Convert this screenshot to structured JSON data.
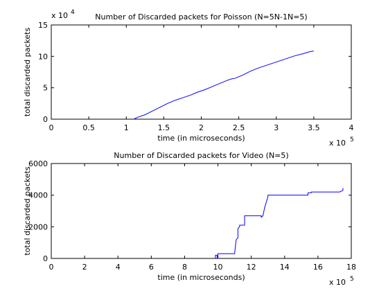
{
  "chart_data": [
    {
      "type": "line",
      "title": "Number of Discarded packets for Poisson (N=5N-1N=5)",
      "xlabel": "time (in microseconds)",
      "ylabel": "total discarded packets",
      "x_multiplier_label": "x 10",
      "x_multiplier_exp": "5",
      "y_multiplier_label": "x 10",
      "y_multiplier_exp": "4",
      "xlim": [
        0,
        4
      ],
      "ylim": [
        0,
        15
      ],
      "x_ticks": [
        "0",
        "0.5",
        "1",
        "1.5",
        "2",
        "2.5",
        "3",
        "3.5",
        "4"
      ],
      "y_ticks": [
        "0",
        "5",
        "10",
        "15"
      ],
      "x_tick_values": [
        0,
        0.5,
        1,
        1.5,
        2,
        2.5,
        3,
        3.5,
        4
      ],
      "y_tick_values": [
        0,
        5,
        10,
        15
      ],
      "grid": false,
      "color": "#0000ff",
      "series": [
        {
          "x": [
            1.1,
            1.15,
            1.25,
            1.35,
            1.45,
            1.55,
            1.65,
            1.75,
            1.85,
            1.95,
            2.05,
            2.15,
            2.25,
            2.35,
            2.4,
            2.45,
            2.55,
            2.65,
            2.75,
            2.85,
            2.95,
            3.05,
            3.15,
            3.25,
            3.35,
            3.45,
            3.5
          ],
          "y": [
            0.0,
            0.3,
            0.7,
            1.3,
            1.9,
            2.5,
            3.0,
            3.4,
            3.8,
            4.3,
            4.7,
            5.2,
            5.7,
            6.2,
            6.4,
            6.5,
            7.0,
            7.6,
            8.1,
            8.5,
            8.9,
            9.3,
            9.7,
            10.1,
            10.4,
            10.75,
            10.85
          ]
        }
      ]
    },
    {
      "type": "line",
      "title": "Number of Discarded packets for Video (N=5)",
      "xlabel": "time (in microseconds)",
      "ylabel": "total discarded packets",
      "x_multiplier_label": "x 10",
      "x_multiplier_exp": "5",
      "xlim": [
        0,
        18
      ],
      "ylim": [
        0,
        6000
      ],
      "x_ticks": [
        "0",
        "2",
        "4",
        "6",
        "8",
        "10",
        "12",
        "14",
        "16",
        "18"
      ],
      "y_ticks": [
        "0",
        "2000",
        "4000",
        "6000"
      ],
      "x_tick_values": [
        0,
        2,
        4,
        6,
        8,
        10,
        12,
        14,
        16,
        18
      ],
      "y_tick_values": [
        0,
        2000,
        4000,
        6000
      ],
      "grid": false,
      "color": "#0000ff",
      "series": [
        {
          "x": [
            9.85,
            9.85,
            9.95,
            9.95,
            10.0,
            10.0,
            11.0,
            11.05,
            11.1,
            11.2,
            11.2,
            11.3,
            11.3,
            11.6,
            11.6,
            12.6,
            12.6,
            12.7,
            12.7,
            12.8,
            13.0,
            13.0,
            15.4,
            15.4,
            15.6,
            15.6,
            17.3,
            17.4,
            17.5,
            17.5
          ],
          "y": [
            0,
            200,
            200,
            0,
            0,
            300,
            300,
            800,
            1200,
            1300,
            1900,
            2000,
            2100,
            2100,
            2700,
            2700,
            2600,
            2700,
            2700,
            3200,
            3900,
            4000,
            4000,
            4150,
            4150,
            4200,
            4200,
            4250,
            4300,
            4450
          ]
        }
      ]
    }
  ]
}
